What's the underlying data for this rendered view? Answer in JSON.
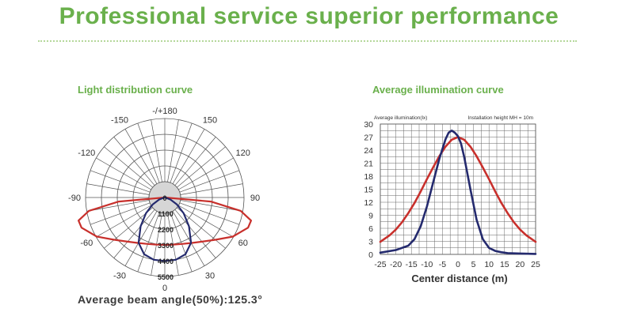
{
  "header": {
    "title": "Professional service superior performance",
    "accent": "#6ab04c"
  },
  "polar": {
    "title": "Light distribution curve",
    "caption": "Average beam angle(50%):125.3°"
  },
  "illumination": {
    "title": "Average illumination curve"
  },
  "chart_data": [
    {
      "type": "polar",
      "name": "Light distribution curve",
      "angle_labels": [
        {
          "angle": 180,
          "text": "-/+180"
        },
        {
          "angle": -150,
          "text": "-150"
        },
        {
          "angle": 150,
          "text": "150"
        },
        {
          "angle": -120,
          "text": "-120"
        },
        {
          "angle": 120,
          "text": "120"
        },
        {
          "angle": -90,
          "text": "-90"
        },
        {
          "angle": 90,
          "text": "90"
        },
        {
          "angle": -60,
          "text": "-60"
        },
        {
          "angle": 60,
          "text": "60"
        },
        {
          "angle": -30,
          "text": "-30"
        },
        {
          "angle": 30,
          "text": "30"
        },
        {
          "angle": 0,
          "text": "0"
        }
      ],
      "radial_labels": [
        "0",
        "1100",
        "2200",
        "3300",
        "4400",
        "5500"
      ],
      "rmax": 5500,
      "series": [
        {
          "color": "#c8302c",
          "points": [
            [
              0,
              3300
            ],
            [
              10,
              3330
            ],
            [
              20,
              3440
            ],
            [
              30,
              3660
            ],
            [
              40,
              4010
            ],
            [
              50,
              4580
            ],
            [
              60,
              5450
            ],
            [
              70,
              6150
            ],
            [
              75,
              6200
            ],
            [
              80,
              5350
            ],
            [
              85,
              3200
            ],
            [
              90,
              0
            ]
          ]
        },
        {
          "color": "#242a6e",
          "points": [
            [
              0,
              4420
            ],
            [
              10,
              4400
            ],
            [
              20,
              4200
            ],
            [
              30,
              3640
            ],
            [
              40,
              2610
            ],
            [
              50,
              1710
            ],
            [
              60,
              980
            ],
            [
              70,
              420
            ],
            [
              80,
              60
            ],
            [
              90,
              0
            ]
          ]
        }
      ]
    },
    {
      "type": "line",
      "name": "Average illumination curve",
      "subtitle_left": "Average illumination(lx)",
      "subtitle_right": "Installation height MH = 10m",
      "xlabel": "Center distance (m)",
      "ylabel": "",
      "xlim": [
        -25,
        25
      ],
      "ylim": [
        0,
        30
      ],
      "xticks": [
        -25,
        -20,
        -15,
        -10,
        -5,
        0,
        5,
        10,
        15,
        20,
        25
      ],
      "xtick_labels": [
        "-25",
        "-20",
        "-15",
        "-10",
        "-5",
        "0",
        "5",
        "10",
        "15",
        "20",
        "25"
      ],
      "yticks": [
        0,
        3,
        6,
        9,
        12,
        15,
        18,
        21,
        24,
        27,
        30
      ],
      "ytick_labels": [
        "0",
        "3",
        "6",
        "9",
        "12",
        "15",
        "18",
        "21",
        "24",
        "27",
        "30"
      ],
      "grid": true,
      "series": [
        {
          "color": "#c8302c",
          "x": [
            -25,
            -22,
            -20,
            -18,
            -16,
            -14,
            -12,
            -10,
            -8,
            -6,
            -4,
            -2,
            0,
            2,
            4,
            6,
            8,
            10,
            12,
            14,
            16,
            18,
            20,
            22,
            25
          ],
          "y": [
            2.9,
            4.4,
            5.7,
            7.4,
            9.5,
            11.8,
            14.5,
            17.3,
            20.0,
            22.6,
            24.8,
            26.4,
            27.0,
            26.4,
            24.8,
            22.6,
            20.0,
            17.3,
            14.5,
            11.8,
            9.5,
            7.4,
            5.7,
            4.4,
            2.9
          ]
        },
        {
          "color": "#242a6e",
          "x": [
            -25,
            -20,
            -16,
            -14,
            -12,
            -10,
            -8,
            -6,
            -4,
            -3,
            -2,
            -1,
            0,
            1,
            2,
            4,
            6,
            8,
            10,
            12,
            14,
            16,
            20,
            25
          ],
          "y": [
            0.4,
            1.0,
            2.0,
            3.5,
            6.5,
            11.0,
            16.5,
            22.0,
            26.5,
            28.0,
            28.5,
            28.0,
            27.2,
            25.5,
            22.5,
            15.0,
            8.0,
            3.5,
            1.5,
            0.8,
            0.5,
            0.3,
            0.2,
            0.1
          ]
        }
      ]
    }
  ]
}
